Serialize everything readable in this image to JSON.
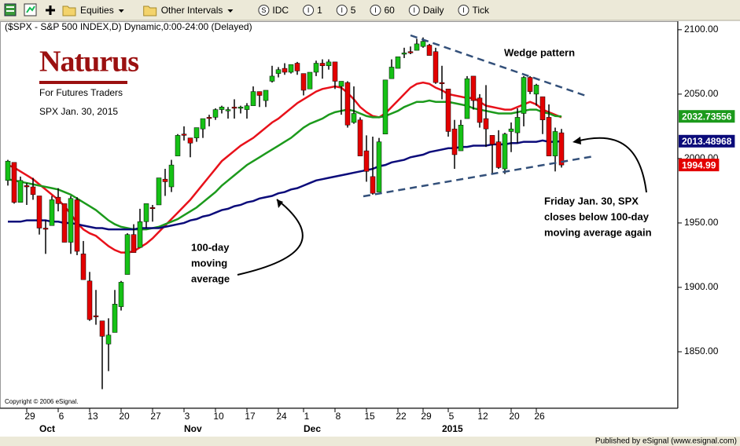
{
  "toolbar": {
    "dropdowns": [
      "Equities",
      "Other Intervals"
    ],
    "buttons": [
      {
        "icon": "S",
        "label": "IDC"
      },
      {
        "icon": "I",
        "label": "1"
      },
      {
        "icon": "I",
        "label": "5"
      },
      {
        "icon": "I",
        "label": "60"
      },
      {
        "icon": "I",
        "label": "Daily"
      },
      {
        "icon": "I",
        "label": "Tick"
      }
    ]
  },
  "footer": "Published by eSignal (www.esignal.com)",
  "chart_data": {
    "type": "candlestick",
    "title": "($SPX - S&P 500 INDEX,D) Dynamic,0:00-24:00 (Delayed)",
    "logo": {
      "name": "Naturus",
      "tagline": "For Futures Traders"
    },
    "subtitle": "SPX Jan. 30, 2015",
    "copyright": "Copyright © 2006 eSignal.",
    "annotations": {
      "wedge": "Wedge pattern",
      "friday": [
        "Friday Jan. 30, SPX",
        "closes below 100-day",
        "moving average again"
      ],
      "ma100": [
        "100-day",
        "moving",
        "average"
      ]
    },
    "categories": [
      null,
      null,
      null,
      "29",
      null,
      null,
      null,
      null,
      "6",
      null,
      null,
      null,
      null,
      "13",
      null,
      null,
      null,
      null,
      "20",
      null,
      null,
      null,
      null,
      "27",
      null,
      null,
      null,
      null,
      "3",
      null,
      null,
      null,
      null,
      "10",
      null,
      null,
      null,
      null,
      "17",
      null,
      null,
      null,
      null,
      "24",
      null,
      null,
      null,
      "1",
      null,
      null,
      null,
      null,
      "8",
      null,
      null,
      null,
      null,
      "15",
      null,
      null,
      null,
      null,
      "22",
      null,
      null,
      null,
      "29",
      null,
      null,
      null,
      "5",
      null,
      null,
      null,
      null,
      "12",
      null,
      null,
      null,
      null,
      "20",
      null,
      null,
      null,
      "26",
      null,
      null,
      null,
      null
    ],
    "months": [
      null,
      null,
      null,
      null,
      null,
      "Oct",
      null,
      null,
      null,
      null,
      null,
      null,
      null,
      null,
      null,
      null,
      null,
      null,
      null,
      null,
      null,
      null,
      null,
      null,
      null,
      null,
      null,
      null,
      "Nov",
      null,
      null,
      null,
      null,
      null,
      null,
      null,
      null,
      null,
      null,
      null,
      null,
      null,
      null,
      null,
      null,
      null,
      null,
      "Dec",
      null,
      null,
      null,
      null,
      null,
      null,
      null,
      null,
      null,
      null,
      null,
      null,
      null,
      null,
      null,
      null,
      null,
      null,
      null,
      null,
      null,
      "2015",
      null,
      null,
      null,
      null,
      null,
      null,
      null,
      null,
      null,
      null,
      null,
      null,
      null,
      null,
      null,
      null,
      null,
      null,
      null
    ],
    "open": [
      1983,
      1997,
      1966,
      1979,
      1978,
      1971,
      1946,
      1948,
      1970,
      1965,
      1935,
      1968,
      1926,
      1905,
      1878,
      1874,
      1856,
      1865,
      1885,
      1910,
      1941,
      1931,
      1951,
      1962,
      1964,
      1984,
      1978,
      2002,
      2019,
      2016,
      2016,
      2023,
      2032,
      2032,
      2038,
      2037,
      2040,
      2039,
      2038,
      2041,
      2052,
      2045,
      2060,
      2066,
      2070,
      2067,
      2074,
      2066,
      2054,
      2067,
      2074,
      2072,
      2075,
      2056,
      2059,
      2028,
      2030,
      2006,
      1986,
      1974,
      2019,
      2062,
      2070,
      2081,
      2083,
      2084,
      2087,
      2088,
      2083,
      2059,
      2054,
      2023,
      2006,
      2031,
      2064,
      2047,
      2031,
      2018,
      2013,
      1992,
      2021,
      2020,
      2035,
      2063,
      2050,
      2048,
      2032,
      2002,
      2020
    ],
    "high": [
      1999,
      1997,
      1986,
      1981,
      1985,
      1971,
      1952,
      1971,
      1977,
      1965,
      1971,
      1970,
      1936,
      1912,
      1898,
      1874,
      1876,
      1898,
      1905,
      1942,
      1949,
      1961,
      1965,
      1964,
      1985,
      1992,
      1999,
      2019,
      2025,
      2016,
      2024,
      2031,
      2034,
      2039,
      2041,
      2040,
      2046,
      2041,
      2043,
      2056,
      2052,
      2053,
      2072,
      2071,
      2074,
      2073,
      2075,
      2066,
      2067,
      2076,
      2077,
      2077,
      2075,
      2060,
      2060,
      2056,
      2032,
      2018,
      2017,
      2016,
      2061,
      2077,
      2079,
      2086,
      2087,
      2093,
      2094,
      2089,
      2086,
      2072,
      2054,
      2030,
      2030,
      2064,
      2064,
      2050,
      2057,
      2018,
      2022,
      2020,
      2028,
      2039,
      2064,
      2064,
      2058,
      2048,
      2042,
      2024,
      2023
    ],
    "low": [
      1979,
      1965,
      1966,
      1964,
      1968,
      1941,
      1926,
      1948,
      1959,
      1935,
      1926,
      1925,
      1906,
      1874,
      1871,
      1821,
      1835,
      1865,
      1882,
      1910,
      1927,
      1931,
      1946,
      1951,
      1964,
      1971,
      1974,
      2002,
      2014,
      2001,
      2013,
      2016,
      2025,
      2030,
      2035,
      2031,
      2031,
      2035,
      2031,
      2041,
      2040,
      2040,
      2059,
      2063,
      2065,
      2066,
      2065,
      2049,
      2054,
      2064,
      2062,
      2069,
      2054,
      2034,
      2024,
      2027,
      2002,
      1982,
      1972,
      1974,
      2019,
      2062,
      2070,
      2078,
      2081,
      2084,
      2086,
      2080,
      2058,
      2046,
      2017,
      1992,
      2006,
      2031,
      2038,
      2024,
      2009,
      1988,
      1992,
      1988,
      2005,
      2012,
      2025,
      2050,
      2041,
      2019,
      2002,
      1990,
      1993
    ],
    "close": [
      1998,
      1966,
      1983,
      1978,
      1972,
      1946,
      1946,
      1968,
      1965,
      1935,
      1969,
      1928,
      1906,
      1875,
      1878,
      1862,
      1863,
      1887,
      1904,
      1941,
      1927,
      1951,
      1965,
      1962,
      1985,
      1982,
      1995,
      2018,
      2018,
      2012,
      2024,
      2031,
      2032,
      2038,
      2040,
      2038,
      2039,
      2040,
      2041,
      2052,
      2049,
      2053,
      2064,
      2069,
      2067,
      2073,
      2068,
      2053,
      2067,
      2074,
      2072,
      2075,
      2060,
      2060,
      2026,
      2035,
      2002,
      1990,
      1973,
      2013,
      2061,
      2071,
      2079,
      2082,
      2082,
      2089,
      2091,
      2080,
      2059,
      2058,
      2021,
      2003,
      2026,
      2062,
      2045,
      2028,
      2023,
      2011,
      1993,
      2019,
      2023,
      2032,
      2063,
      2052,
      2057,
      2030,
      2002,
      2021,
      1994.99
    ],
    "color_up": "#16c116",
    "color_down": "#e30000",
    "show_last_close": true,
    "ma": [
      {
        "color": "#e8111a",
        "show_last": false,
        "values": [
          1995,
          1993,
          1990,
          1987,
          1984,
          1980,
          1976,
          1972,
          1968,
          1963,
          1957,
          1950,
          1945,
          1942,
          1940,
          1936,
          1932,
          1929,
          1927,
          1927,
          1928,
          1931,
          1934,
          1938,
          1943,
          1948,
          1953,
          1958,
          1963,
          1968,
          1974,
          1980,
          1986,
          1992,
          1998,
          2002,
          2006,
          2010,
          2013,
          2016,
          2020,
          2024,
          2028,
          2031,
          2035,
          2039,
          2043,
          2046,
          2049,
          2052,
          2054,
          2055,
          2056,
          2055,
          2051,
          2046,
          2040,
          2036,
          2033,
          2032,
          2035,
          2040,
          2045,
          2050,
          2055,
          2058,
          2059,
          2058,
          2055,
          2053,
          2050,
          2049,
          2048,
          2047,
          2047,
          2044,
          2041,
          2040,
          2039,
          2038,
          2038,
          2040,
          2042,
          2044,
          2042,
          2038,
          2036,
          2034,
          2032
        ]
      },
      {
        "color": "#1c9a1c",
        "show_last": true,
        "values": [
          1984,
          1983,
          1982,
          1981,
          1980,
          1979,
          1978,
          1977,
          1976,
          1974,
          1972,
          1969,
          1966,
          1963,
          1960,
          1956,
          1952,
          1949,
          1947,
          1946,
          1945,
          1945,
          1945,
          1946,
          1947,
          1949,
          1951,
          1953,
          1956,
          1959,
          1962,
          1966,
          1970,
          1974,
          1979,
          1983,
          1987,
          1991,
          1995,
          1998,
          2001,
          2004,
          2007,
          2010,
          2013,
          2016,
          2020,
          2024,
          2027,
          2029,
          2031,
          2034,
          2036,
          2037,
          2038,
          2037,
          2035,
          2033,
          2032,
          2032,
          2033,
          2035,
          2037,
          2040,
          2042,
          2044,
          2044,
          2045,
          2044,
          2044,
          2044,
          2043,
          2042,
          2041,
          2039,
          2038,
          2037,
          2036,
          2035,
          2035,
          2035,
          2036,
          2037,
          2038,
          2038,
          2036,
          2035,
          2033,
          2032.73556
        ]
      },
      {
        "color": "#0b0b7a",
        "show_last": true,
        "values": [
          1951,
          1951,
          1951,
          1952,
          1952,
          1952,
          1952,
          1951,
          1951,
          1950,
          1950,
          1949,
          1948,
          1947,
          1946,
          1946,
          1945,
          1945,
          1945,
          1945,
          1945,
          1946,
          1946,
          1946,
          1946,
          1947,
          1948,
          1949,
          1950,
          1952,
          1953,
          1955,
          1956,
          1958,
          1960,
          1961,
          1963,
          1964,
          1966,
          1967,
          1969,
          1970,
          1971,
          1973,
          1974,
          1976,
          1977,
          1979,
          1981,
          1983,
          1984,
          1985,
          1986,
          1987,
          1988,
          1989,
          1990,
          1991,
          1992,
          1994,
          1995,
          1997,
          1998,
          1999,
          2001,
          2002,
          2003,
          2005,
          2006,
          2007,
          2008,
          2008,
          2009,
          2009,
          2010,
          2010,
          2010,
          2011,
          2011,
          2011,
          2012,
          2012,
          2013,
          2013,
          2013,
          2014,
          2013,
          2013,
          2013.48968
        ]
      }
    ],
    "ylim": [
      1811,
      2106
    ],
    "yticks": [
      {
        "value": 1850,
        "label": "1850.00"
      },
      {
        "value": 1900,
        "label": "1900.00"
      },
      {
        "value": 1950,
        "label": "1950.00"
      },
      {
        "value": 2000,
        "label": "2000.00"
      },
      {
        "value": 2050,
        "label": "2050.00"
      },
      {
        "value": 2100,
        "label": "2100.00"
      }
    ],
    "grid": false
  }
}
